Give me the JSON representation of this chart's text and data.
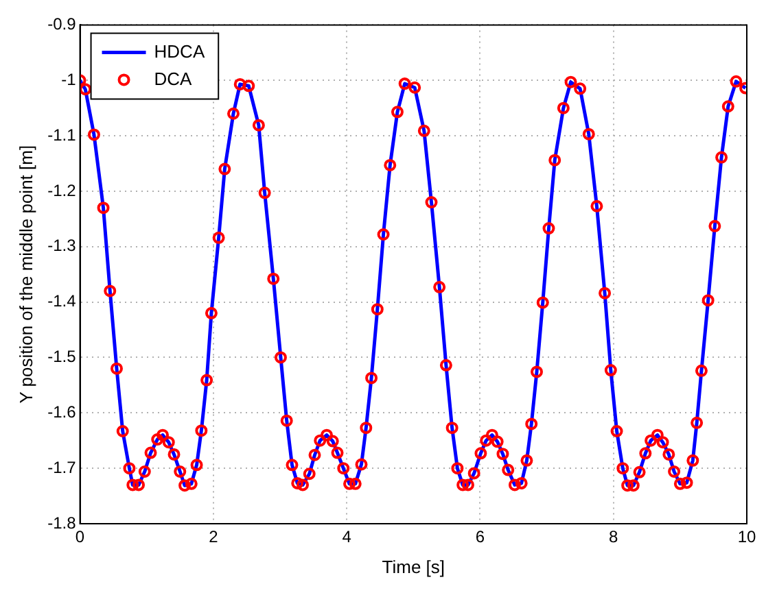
{
  "chart_data": {
    "type": "line",
    "xlabel": "Time [s]",
    "ylabel": "Y position of the middle point [m]",
    "xlim": [
      0,
      10
    ],
    "xticks": [
      0,
      2,
      4,
      6,
      8,
      10
    ],
    "ylim": [
      -1.8,
      -0.9
    ],
    "yticks": [
      -1.8,
      -1.7,
      -1.6,
      -1.5,
      -1.4,
      -1.3,
      -1.2,
      -1.1,
      -1,
      -0.9
    ],
    "grid": true,
    "legend": "top left",
    "x": [
      0,
      0.08,
      0.21,
      0.35,
      0.45,
      0.55,
      0.64,
      0.74,
      0.79,
      0.88,
      0.97,
      1.06,
      1.16,
      1.24,
      1.33,
      1.41,
      1.5,
      1.57,
      1.67,
      1.75,
      1.82,
      1.9,
      1.97,
      2.08,
      2.17,
      2.3,
      2.4,
      2.53,
      2.68,
      2.77,
      2.9,
      3.01,
      3.1,
      3.18,
      3.26,
      3.34,
      3.44,
      3.52,
      3.6,
      3.7,
      3.79,
      3.86,
      3.95,
      4.04,
      4.13,
      4.22,
      4.29,
      4.37,
      4.46,
      4.55,
      4.65,
      4.76,
      4.87,
      5.02,
      5.16,
      5.27,
      5.39,
      5.49,
      5.58,
      5.66,
      5.74,
      5.82,
      5.91,
      6.01,
      6.09,
      6.18,
      6.26,
      6.34,
      6.42,
      6.52,
      6.62,
      6.7,
      6.77,
      6.85,
      6.94,
      7.03,
      7.12,
      7.25,
      7.36,
      7.5,
      7.63,
      7.75,
      7.87,
      7.96,
      8.05,
      8.14,
      8.21,
      8.3,
      8.39,
      8.48,
      8.56,
      8.66,
      8.74,
      8.83,
      8.91,
      9,
      9.1,
      9.19,
      9.25,
      9.32,
      9.42,
      9.52,
      9.62,
      9.72,
      9.84,
      9.98
    ],
    "series": [
      {
        "name": "HDCA",
        "type": "line",
        "color": "#0000ff",
        "marker": "none",
        "line_style": "solid",
        "values": [
          -1,
          -1.016,
          -1.098,
          -1.23,
          -1.38,
          -1.52,
          -1.633,
          -1.7,
          -1.73,
          -1.73,
          -1.706,
          -1.672,
          -1.648,
          -1.64,
          -1.653,
          -1.675,
          -1.706,
          -1.731,
          -1.728,
          -1.694,
          -1.632,
          -1.541,
          -1.42,
          -1.284,
          -1.16,
          -1.06,
          -1.007,
          -1.01,
          -1.081,
          -1.203,
          -1.358,
          -1.5,
          -1.614,
          -1.694,
          -1.727,
          -1.73,
          -1.71,
          -1.676,
          -1.65,
          -1.64,
          -1.651,
          -1.672,
          -1.7,
          -1.728,
          -1.728,
          -1.693,
          -1.627,
          -1.537,
          -1.413,
          -1.278,
          -1.153,
          -1.057,
          -1.006,
          -1.013,
          -1.091,
          -1.22,
          -1.373,
          -1.514,
          -1.627,
          -1.7,
          -1.73,
          -1.73,
          -1.709,
          -1.673,
          -1.65,
          -1.64,
          -1.652,
          -1.674,
          -1.703,
          -1.73,
          -1.727,
          -1.686,
          -1.62,
          -1.526,
          -1.401,
          -1.267,
          -1.144,
          -1.05,
          -1.003,
          -1.015,
          -1.097,
          -1.227,
          -1.384,
          -1.523,
          -1.633,
          -1.7,
          -1.731,
          -1.731,
          -1.707,
          -1.673,
          -1.65,
          -1.64,
          -1.653,
          -1.675,
          -1.706,
          -1.728,
          -1.726,
          -1.686,
          -1.618,
          -1.524,
          -1.397,
          -1.263,
          -1.139,
          -1.047,
          -1.002,
          -1.014
        ]
      },
      {
        "name": "DCA",
        "type": "scatter",
        "color": "#ff0000",
        "marker": "circle",
        "values": [
          -1,
          -1.016,
          -1.098,
          -1.23,
          -1.38,
          -1.52,
          -1.633,
          -1.7,
          -1.73,
          -1.73,
          -1.706,
          -1.672,
          -1.648,
          -1.64,
          -1.653,
          -1.675,
          -1.706,
          -1.731,
          -1.728,
          -1.694,
          -1.632,
          -1.541,
          -1.42,
          -1.284,
          -1.16,
          -1.06,
          -1.007,
          -1.01,
          -1.081,
          -1.203,
          -1.358,
          -1.5,
          -1.614,
          -1.694,
          -1.727,
          -1.73,
          -1.71,
          -1.676,
          -1.65,
          -1.64,
          -1.651,
          -1.672,
          -1.7,
          -1.728,
          -1.728,
          -1.693,
          -1.627,
          -1.537,
          -1.413,
          -1.278,
          -1.153,
          -1.057,
          -1.006,
          -1.013,
          -1.091,
          -1.22,
          -1.373,
          -1.514,
          -1.627,
          -1.7,
          -1.73,
          -1.73,
          -1.709,
          -1.673,
          -1.65,
          -1.64,
          -1.652,
          -1.674,
          -1.703,
          -1.73,
          -1.727,
          -1.686,
          -1.62,
          -1.526,
          -1.401,
          -1.267,
          -1.144,
          -1.05,
          -1.003,
          -1.015,
          -1.097,
          -1.227,
          -1.384,
          -1.523,
          -1.633,
          -1.7,
          -1.731,
          -1.731,
          -1.707,
          -1.673,
          -1.65,
          -1.64,
          -1.653,
          -1.675,
          -1.706,
          -1.728,
          -1.726,
          -1.686,
          -1.618,
          -1.524,
          -1.397,
          -1.263,
          -1.139,
          -1.047,
          -1.002,
          -1.014
        ]
      }
    ]
  }
}
